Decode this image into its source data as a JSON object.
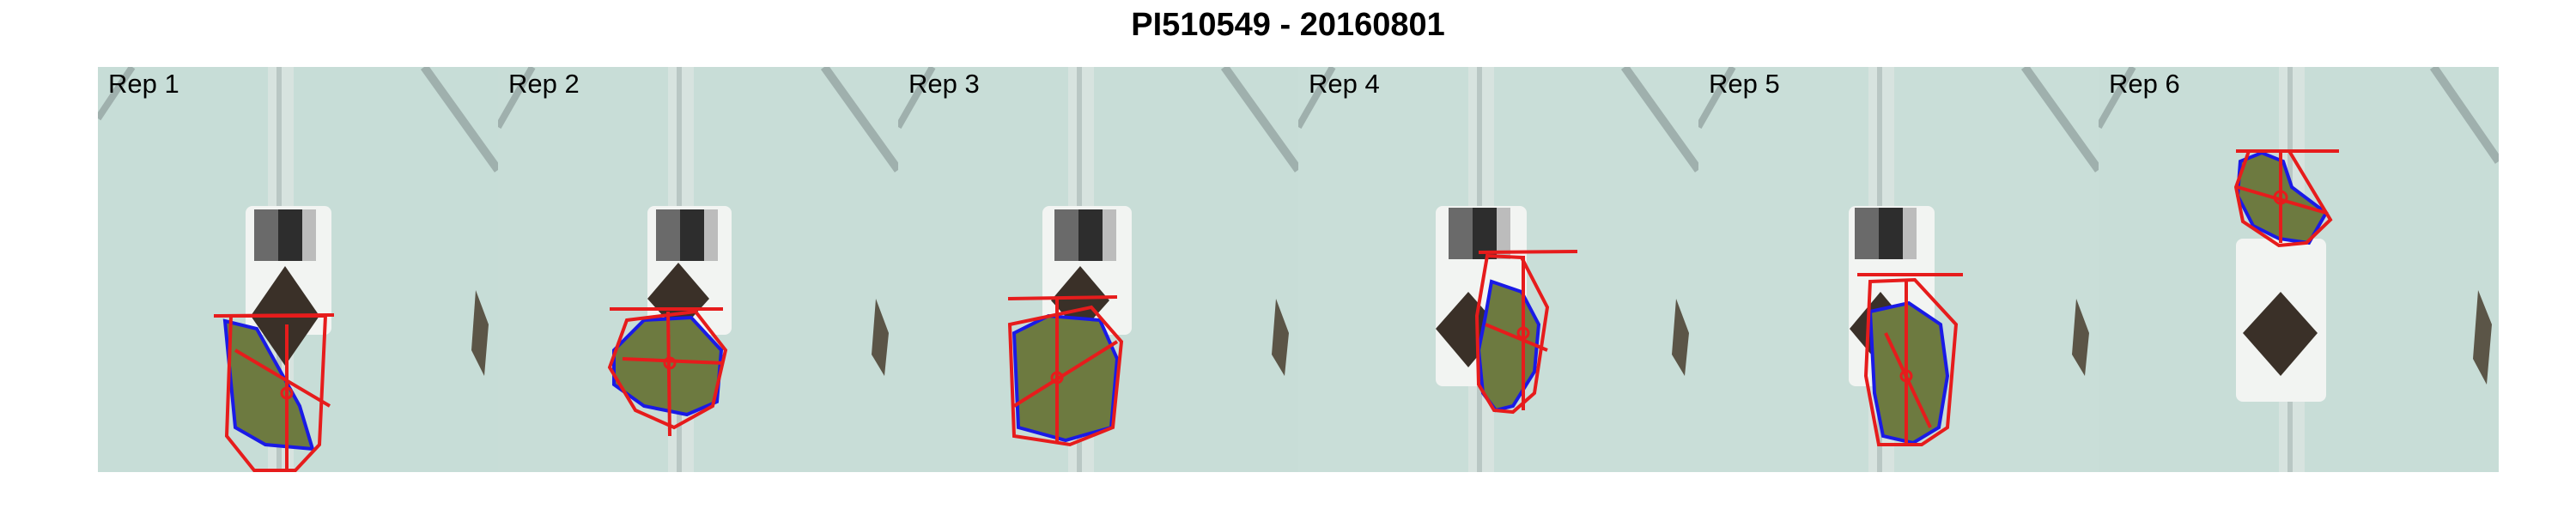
{
  "title": "PI510549 - 20160801",
  "panels": [
    {
      "label": "Rep 1"
    },
    {
      "label": "Rep 2"
    },
    {
      "label": "Rep 3"
    },
    {
      "label": "Rep 4"
    },
    {
      "label": "Rep 5"
    },
    {
      "label": "Rep 6"
    }
  ],
  "colors": {
    "background": "#c6dcd6",
    "hull": "#e61c1c",
    "contour": "#1a1ae6",
    "plant": "#6d7a40",
    "pot": "#3a3028"
  }
}
